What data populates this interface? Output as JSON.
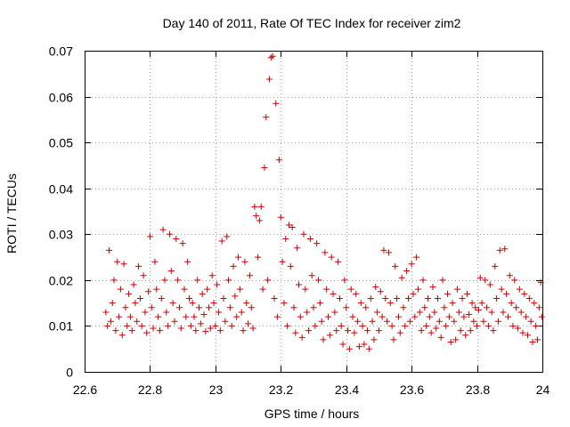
{
  "chart_data": {
    "type": "scatter",
    "title": "Day 140 of 2011, Rate Of TEC Index for receiver zim2",
    "xlabel": "GPS time / hours",
    "ylabel": "ROTI / TECUs",
    "xlim": [
      22.6,
      24.0
    ],
    "ylim": [
      0,
      0.07
    ],
    "x_ticks": [
      22.6,
      22.8,
      23.0,
      23.2,
      23.4,
      23.6,
      23.8,
      24.0
    ],
    "x_tick_labels": [
      "22.6",
      "22.8",
      "23",
      "23.2",
      "23.4",
      "23.6",
      "23.8",
      "24"
    ],
    "y_ticks": [
      0,
      0.01,
      0.02,
      0.03,
      0.04,
      0.05,
      0.06,
      0.07
    ],
    "y_tick_labels": [
      "0",
      "0.01",
      "0.02",
      "0.03",
      "0.04",
      "0.05",
      "0.06",
      "0.07"
    ],
    "grid": true,
    "legend": false,
    "marker": "plus",
    "series": [
      {
        "name": "ROTI",
        "color": "#cc0000",
        "points": [
          [
            22.665,
            0.013
          ],
          [
            22.67,
            0.01
          ],
          [
            22.675,
            0.0265
          ],
          [
            22.68,
            0.011
          ],
          [
            22.685,
            0.015
          ],
          [
            22.69,
            0.02
          ],
          [
            22.695,
            0.009
          ],
          [
            22.7,
            0.024
          ],
          [
            22.705,
            0.012
          ],
          [
            22.71,
            0.018
          ],
          [
            22.715,
            0.008
          ],
          [
            22.72,
            0.0235
          ],
          [
            22.725,
            0.014
          ],
          [
            22.73,
            0.01
          ],
          [
            22.735,
            0.017
          ],
          [
            22.74,
            0.012
          ],
          [
            22.745,
            0.009
          ],
          [
            22.75,
            0.019
          ],
          [
            22.755,
            0.015
          ],
          [
            22.76,
            0.011
          ],
          [
            22.765,
            0.023
          ],
          [
            22.77,
            0.016
          ],
          [
            22.775,
            0.01
          ],
          [
            22.78,
            0.021
          ],
          [
            22.785,
            0.013
          ],
          [
            22.79,
            0.0085
          ],
          [
            22.795,
            0.0175
          ],
          [
            22.8,
            0.0295
          ],
          [
            22.805,
            0.014
          ],
          [
            22.81,
            0.0095
          ],
          [
            22.815,
            0.024
          ],
          [
            22.82,
            0.018
          ],
          [
            22.825,
            0.012
          ],
          [
            22.83,
            0.009
          ],
          [
            22.835,
            0.016
          ],
          [
            22.84,
            0.031
          ],
          [
            22.845,
            0.02
          ],
          [
            22.85,
            0.013
          ],
          [
            22.855,
            0.01
          ],
          [
            22.86,
            0.03
          ],
          [
            22.865,
            0.022
          ],
          [
            22.87,
            0.015
          ],
          [
            22.875,
            0.011
          ],
          [
            22.88,
            0.029
          ],
          [
            22.885,
            0.02
          ],
          [
            22.89,
            0.014
          ],
          [
            22.895,
            0.0095
          ],
          [
            22.9,
            0.028
          ],
          [
            22.905,
            0.018
          ],
          [
            22.91,
            0.012
          ],
          [
            22.915,
            0.024
          ],
          [
            22.92,
            0.016
          ],
          [
            22.925,
            0.01
          ],
          [
            22.93,
            0.015
          ],
          [
            22.935,
            0.012
          ],
          [
            22.94,
            0.009
          ],
          [
            22.945,
            0.02
          ],
          [
            22.95,
            0.014
          ],
          [
            22.955,
            0.0105
          ],
          [
            22.96,
            0.017
          ],
          [
            22.965,
            0.0125
          ],
          [
            22.97,
            0.0088
          ],
          [
            22.975,
            0.018
          ],
          [
            22.98,
            0.014
          ],
          [
            22.985,
            0.0095
          ],
          [
            22.99,
            0.021
          ],
          [
            22.995,
            0.015
          ],
          [
            23.0,
            0.01
          ],
          [
            23.005,
            0.019
          ],
          [
            23.01,
            0.013
          ],
          [
            23.015,
            0.009
          ],
          [
            23.02,
            0.0285
          ],
          [
            23.025,
            0.016
          ],
          [
            23.03,
            0.011
          ],
          [
            23.035,
            0.0295
          ],
          [
            23.04,
            0.02
          ],
          [
            23.045,
            0.014
          ],
          [
            23.05,
            0.01
          ],
          [
            23.055,
            0.023
          ],
          [
            23.06,
            0.0165
          ],
          [
            23.065,
            0.012
          ],
          [
            23.07,
            0.025
          ],
          [
            23.075,
            0.018
          ],
          [
            23.08,
            0.013
          ],
          [
            23.085,
            0.009
          ],
          [
            23.09,
            0.024
          ],
          [
            23.095,
            0.015
          ],
          [
            23.1,
            0.0105
          ],
          [
            23.105,
            0.021
          ],
          [
            23.11,
            0.014
          ],
          [
            23.115,
            0.0095
          ],
          [
            23.12,
            0.036
          ],
          [
            23.125,
            0.034
          ],
          [
            23.13,
            0.025
          ],
          [
            23.135,
            0.033
          ],
          [
            23.14,
            0.036
          ],
          [
            23.145,
            0.018
          ],
          [
            23.15,
            0.0445
          ],
          [
            23.155,
            0.0555
          ],
          [
            23.16,
            0.02
          ],
          [
            23.165,
            0.0638
          ],
          [
            23.17,
            0.0685
          ],
          [
            23.175,
            0.0688
          ],
          [
            23.18,
            0.016
          ],
          [
            23.185,
            0.0585
          ],
          [
            23.19,
            0.012
          ],
          [
            23.195,
            0.0462
          ],
          [
            23.2,
            0.0337
          ],
          [
            23.205,
            0.024
          ],
          [
            23.21,
            0.015
          ],
          [
            23.215,
            0.029
          ],
          [
            23.22,
            0.01
          ],
          [
            23.225,
            0.032
          ],
          [
            23.23,
            0.023
          ],
          [
            23.235,
            0.0315
          ],
          [
            23.24,
            0.014
          ],
          [
            23.245,
            0.0085
          ],
          [
            23.25,
            0.027
          ],
          [
            23.255,
            0.019
          ],
          [
            23.26,
            0.012
          ],
          [
            23.265,
            0.0075
          ],
          [
            23.27,
            0.03
          ],
          [
            23.275,
            0.018
          ],
          [
            23.28,
            0.013
          ],
          [
            23.285,
            0.009
          ],
          [
            23.29,
            0.029
          ],
          [
            23.295,
            0.021
          ],
          [
            23.3,
            0.014
          ],
          [
            23.305,
            0.01
          ],
          [
            23.31,
            0.028
          ],
          [
            23.315,
            0.02
          ],
          [
            23.32,
            0.015
          ],
          [
            23.325,
            0.011
          ],
          [
            23.33,
            0.007
          ],
          [
            23.335,
            0.026
          ],
          [
            23.34,
            0.018
          ],
          [
            23.345,
            0.012
          ],
          [
            23.35,
            0.008
          ],
          [
            23.355,
            0.025
          ],
          [
            23.36,
            0.017
          ],
          [
            23.365,
            0.013
          ],
          [
            23.37,
            0.009
          ],
          [
            23.375,
            0.024
          ],
          [
            23.38,
            0.016
          ],
          [
            23.385,
            0.01
          ],
          [
            23.39,
            0.006
          ],
          [
            23.395,
            0.02
          ],
          [
            23.4,
            0.014
          ],
          [
            23.405,
            0.009
          ],
          [
            23.41,
            0.005
          ],
          [
            23.415,
            0.018
          ],
          [
            23.42,
            0.012
          ],
          [
            23.425,
            0.0085
          ],
          [
            23.43,
            0.017
          ],
          [
            23.435,
            0.011
          ],
          [
            23.44,
            0.0055
          ],
          [
            23.445,
            0.015
          ],
          [
            23.45,
            0.01
          ],
          [
            23.455,
            0.006
          ],
          [
            23.46,
            0.014
          ],
          [
            23.465,
            0.009
          ],
          [
            23.47,
            0.005
          ],
          [
            23.475,
            0.016
          ],
          [
            23.48,
            0.011
          ],
          [
            23.485,
            0.007
          ],
          [
            23.49,
            0.0185
          ],
          [
            23.495,
            0.013
          ],
          [
            23.5,
            0.009
          ],
          [
            23.505,
            0.0175
          ],
          [
            23.51,
            0.012
          ],
          [
            23.515,
            0.0265
          ],
          [
            23.52,
            0.016
          ],
          [
            23.525,
            0.011
          ],
          [
            23.53,
            0.026
          ],
          [
            23.535,
            0.015
          ],
          [
            23.54,
            0.01
          ],
          [
            23.545,
            0.007
          ],
          [
            23.55,
            0.023
          ],
          [
            23.555,
            0.016
          ],
          [
            23.56,
            0.012
          ],
          [
            23.565,
            0.0085
          ],
          [
            23.57,
            0.0205
          ],
          [
            23.575,
            0.014
          ],
          [
            23.58,
            0.01
          ],
          [
            23.585,
            0.022
          ],
          [
            23.59,
            0.016
          ],
          [
            23.595,
            0.011
          ],
          [
            23.6,
            0.0235
          ],
          [
            23.605,
            0.017
          ],
          [
            23.61,
            0.012
          ],
          [
            23.615,
            0.025
          ],
          [
            23.62,
            0.018
          ],
          [
            23.625,
            0.013
          ],
          [
            23.63,
            0.009
          ],
          [
            23.635,
            0.02
          ],
          [
            23.64,
            0.014
          ],
          [
            23.645,
            0.01
          ],
          [
            23.65,
            0.016
          ],
          [
            23.655,
            0.012
          ],
          [
            23.66,
            0.0085
          ],
          [
            23.665,
            0.0185
          ],
          [
            23.67,
            0.013
          ],
          [
            23.675,
            0.0095
          ],
          [
            23.68,
            0.016
          ],
          [
            23.685,
            0.011
          ],
          [
            23.69,
            0.0075
          ],
          [
            23.695,
            0.02
          ],
          [
            23.7,
            0.014
          ],
          [
            23.705,
            0.01
          ],
          [
            23.71,
            0.017
          ],
          [
            23.715,
            0.012
          ],
          [
            23.72,
            0.0065
          ],
          [
            23.725,
            0.015
          ],
          [
            23.73,
            0.011
          ],
          [
            23.735,
            0.007
          ],
          [
            23.74,
            0.018
          ],
          [
            23.745,
            0.013
          ],
          [
            23.75,
            0.009
          ],
          [
            23.755,
            0.016
          ],
          [
            23.76,
            0.012
          ],
          [
            23.765,
            0.008
          ],
          [
            23.77,
            0.017
          ],
          [
            23.775,
            0.0125
          ],
          [
            23.78,
            0.009
          ],
          [
            23.785,
            0.015
          ],
          [
            23.79,
            0.011
          ],
          [
            23.795,
            0.014
          ],
          [
            23.8,
            0.01
          ],
          [
            23.805,
            0.0135
          ],
          [
            23.81,
            0.0205
          ],
          [
            23.815,
            0.015
          ],
          [
            23.82,
            0.011
          ],
          [
            23.825,
            0.02
          ],
          [
            23.83,
            0.014
          ],
          [
            23.835,
            0.01
          ],
          [
            23.84,
            0.019
          ],
          [
            23.845,
            0.013
          ],
          [
            23.85,
            0.009
          ],
          [
            23.855,
            0.023
          ],
          [
            23.86,
            0.016
          ],
          [
            23.865,
            0.011
          ],
          [
            23.87,
            0.0265
          ],
          [
            23.875,
            0.018
          ],
          [
            23.88,
            0.013
          ],
          [
            23.885,
            0.0268
          ],
          [
            23.89,
            0.017
          ],
          [
            23.895,
            0.012
          ],
          [
            23.9,
            0.021
          ],
          [
            23.905,
            0.015
          ],
          [
            23.91,
            0.01
          ],
          [
            23.915,
            0.02
          ],
          [
            23.92,
            0.014
          ],
          [
            23.925,
            0.0095
          ],
          [
            23.93,
            0.018
          ],
          [
            23.935,
            0.013
          ],
          [
            23.94,
            0.0085
          ],
          [
            23.945,
            0.017
          ],
          [
            23.95,
            0.012
          ],
          [
            23.955,
            0.008
          ],
          [
            23.96,
            0.016
          ],
          [
            23.965,
            0.011
          ],
          [
            23.97,
            0.0065
          ],
          [
            23.975,
            0.015
          ],
          [
            23.98,
            0.01
          ],
          [
            23.985,
            0.007
          ],
          [
            23.99,
            0.014
          ],
          [
            23.995,
            0.0195
          ],
          [
            23.998,
            0.012
          ]
        ]
      }
    ]
  }
}
